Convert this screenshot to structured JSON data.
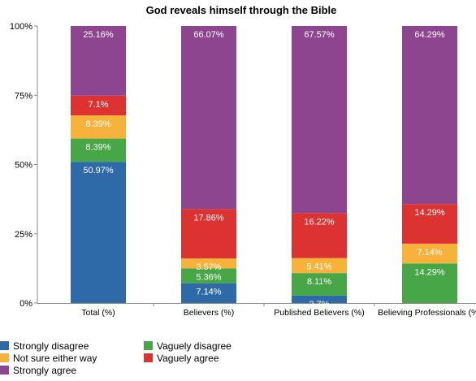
{
  "chart_data": {
    "type": "bar",
    "stacked": true,
    "title": "God reveals himself through the Bible",
    "xlabel": "",
    "ylabel": "",
    "ylim": [
      0,
      100
    ],
    "yticks": [
      {
        "value": 0,
        "label": "0%"
      },
      {
        "value": 25,
        "label": "25%"
      },
      {
        "value": 50,
        "label": "50%"
      },
      {
        "value": 75,
        "label": "75%"
      },
      {
        "value": 100,
        "label": "100%"
      }
    ],
    "grid": false,
    "legend_position": "bottom-left",
    "categories": [
      "Total (%)",
      "Believers (%)",
      "Published Believers (%)",
      "Believing Professionals (%)"
    ],
    "series": [
      {
        "name": "Strongly disagree",
        "color": "#2e6aa8",
        "values": [
          50.97,
          7.14,
          2.7,
          0
        ],
        "labels": [
          "50.97%",
          "7.14%",
          "2.7%",
          ""
        ]
      },
      {
        "name": "Vaguely disagree",
        "color": "#47a646",
        "values": [
          8.39,
          5.36,
          8.11,
          14.29
        ],
        "labels": [
          "8.39%",
          "5.36%",
          "8.11%",
          "14.29%"
        ]
      },
      {
        "name": "Not sure either way",
        "color": "#f7b23b",
        "values": [
          8.39,
          3.57,
          5.41,
          7.14
        ],
        "labels": [
          "8.39%",
          "3.57%",
          "5.41%",
          "7.14%"
        ]
      },
      {
        "name": "Vaguely agree",
        "color": "#dc3232",
        "values": [
          7.1,
          17.86,
          16.22,
          14.29
        ],
        "labels": [
          "7.1%",
          "17.86%",
          "16.22%",
          "14.29%"
        ]
      },
      {
        "name": "Strongly agree",
        "color": "#8e4590",
        "values": [
          25.16,
          66.07,
          67.57,
          64.29
        ],
        "labels": [
          "25.16%",
          "66.07%",
          "67.57%",
          "64.29%"
        ]
      }
    ],
    "legend_order": [
      "Strongly disagree",
      "Vaguely disagree",
      "Not sure either way",
      "Vaguely agree",
      "Strongly agree"
    ]
  }
}
